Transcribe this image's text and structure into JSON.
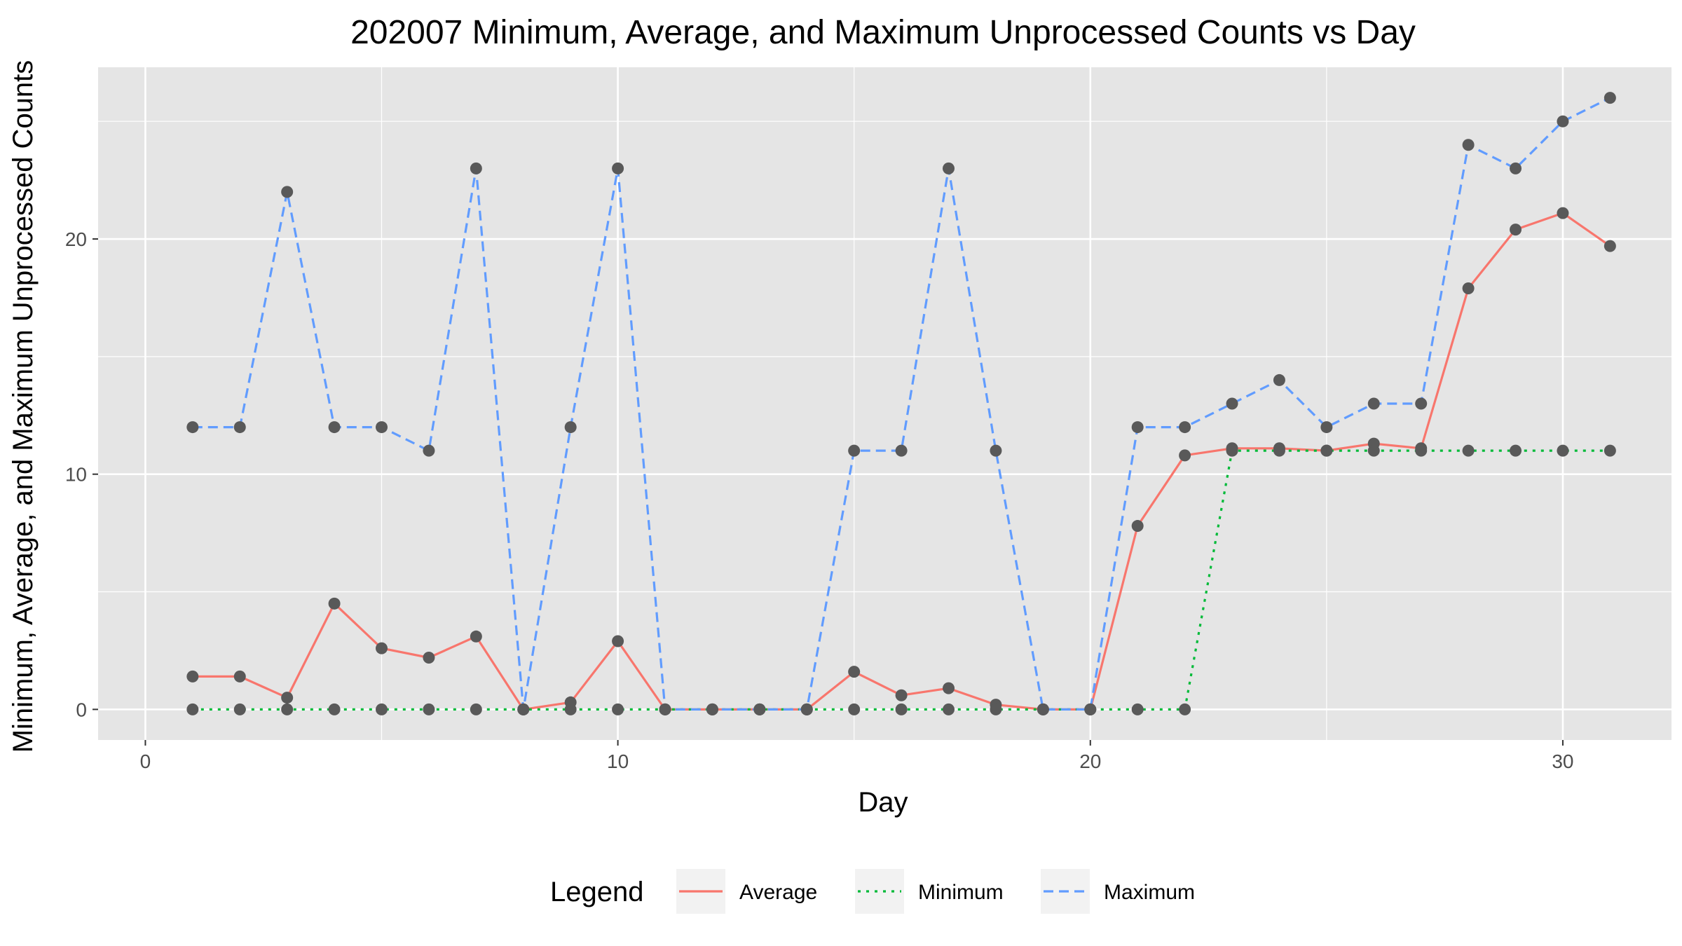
{
  "chart_data": {
    "type": "line",
    "title": "202007 Minimum, Average, and Maximum Unprocessed Counts vs Day",
    "xlabel": "Day",
    "ylabel": "Minimum, Average, and Maximum Unprocessed Counts",
    "xlim": [
      -1,
      32.3
    ],
    "ylim": [
      -1.3,
      27.3
    ],
    "x_ticks": [
      0,
      10,
      20,
      30
    ],
    "y_ticks": [
      0,
      10,
      20
    ],
    "x_minor": [
      5,
      15,
      25
    ],
    "y_minor": [
      5,
      15,
      25
    ],
    "grid": true,
    "legend_position": "bottom",
    "legend_title": "Legend",
    "x": [
      1,
      2,
      3,
      4,
      5,
      6,
      7,
      8,
      9,
      10,
      11,
      12,
      13,
      14,
      15,
      16,
      17,
      18,
      19,
      20,
      21,
      22,
      23,
      24,
      25,
      26,
      27,
      28,
      29,
      30,
      31
    ],
    "series": [
      {
        "name": "Average",
        "color": "#F8766D",
        "dash": "solid",
        "values": [
          1.4,
          1.4,
          0.5,
          4.5,
          2.6,
          2.2,
          3.1,
          0,
          0.3,
          2.9,
          0,
          0,
          0,
          0,
          1.6,
          0.6,
          0.9,
          0.2,
          0,
          0,
          7.8,
          10.8,
          11.1,
          11.1,
          11,
          11.3,
          11.1,
          17.9,
          20.4,
          21.1,
          19.7
        ]
      },
      {
        "name": "Minimum",
        "color": "#00BA38",
        "dash": "dotted",
        "values": [
          0,
          0,
          0,
          0,
          0,
          0,
          0,
          0,
          0,
          0,
          0,
          0,
          0,
          0,
          0,
          0,
          0,
          0,
          0,
          0,
          0,
          0,
          11,
          11,
          11,
          11,
          11,
          11,
          11,
          11,
          11
        ]
      },
      {
        "name": "Maximum",
        "color": "#619CFF",
        "dash": "dashed",
        "values": [
          12,
          12,
          22,
          12,
          12,
          11,
          23,
          0,
          12,
          23,
          0,
          0,
          0,
          0,
          11,
          11,
          23,
          11,
          0,
          0,
          12,
          12,
          13,
          14,
          12,
          13,
          13,
          24,
          23,
          25,
          26
        ]
      }
    ],
    "point_color": "#595959",
    "panel_background": "#E5E5E5"
  }
}
